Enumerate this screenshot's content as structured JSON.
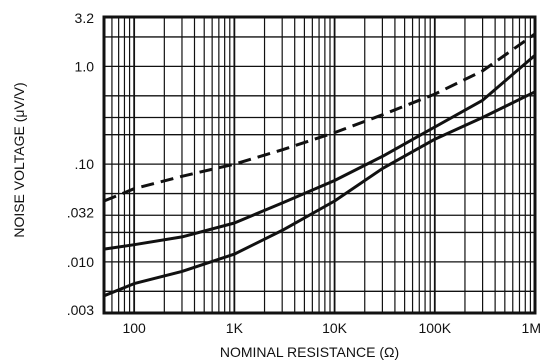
{
  "chart_data": {
    "type": "line",
    "xlabel": "NOMINAL RESISTANCE (Ω)",
    "ylabel": "NOISE VOLTAGE (μV/V)",
    "x_scale": "log",
    "y_scale": "log",
    "xlim": [
      50,
      1000000
    ],
    "ylim": [
      0.003,
      3.2
    ],
    "grid": true,
    "x_ticks": [
      {
        "value": 100,
        "label": "100"
      },
      {
        "value": 1000,
        "label": "1K"
      },
      {
        "value": 10000,
        "label": "10K"
      },
      {
        "value": 100000,
        "label": "100K"
      },
      {
        "value": 1000000,
        "label": "1M"
      }
    ],
    "y_ticks": [
      {
        "value": 3.2,
        "label": "3.2"
      },
      {
        "value": 1.0,
        "label": "1.0"
      },
      {
        "value": 0.1,
        "label": ".10"
      },
      {
        "value": 0.032,
        "label": ".032"
      },
      {
        "value": 0.01,
        "label": ".010"
      },
      {
        "value": 0.003,
        "label": ".003"
      }
    ],
    "series": [
      {
        "style": "dashed",
        "x": [
          50,
          100,
          300,
          1000,
          3000,
          10000,
          30000,
          100000,
          300000,
          1000000
        ],
        "y": [
          0.042,
          0.056,
          0.075,
          0.1,
          0.14,
          0.21,
          0.32,
          0.52,
          0.9,
          2.15
        ]
      },
      {
        "style": "solid",
        "x": [
          50,
          100,
          300,
          1000,
          3000,
          10000,
          30000,
          100000,
          300000,
          1000000
        ],
        "y": [
          0.0135,
          0.015,
          0.018,
          0.025,
          0.04,
          0.068,
          0.12,
          0.24,
          0.45,
          1.3
        ]
      },
      {
        "style": "solid",
        "x": [
          50,
          100,
          300,
          1000,
          3000,
          10000,
          30000,
          100000,
          300000,
          1000000
        ],
        "y": [
          0.0045,
          0.006,
          0.008,
          0.012,
          0.021,
          0.042,
          0.09,
          0.18,
          0.3,
          0.55
        ]
      }
    ]
  }
}
